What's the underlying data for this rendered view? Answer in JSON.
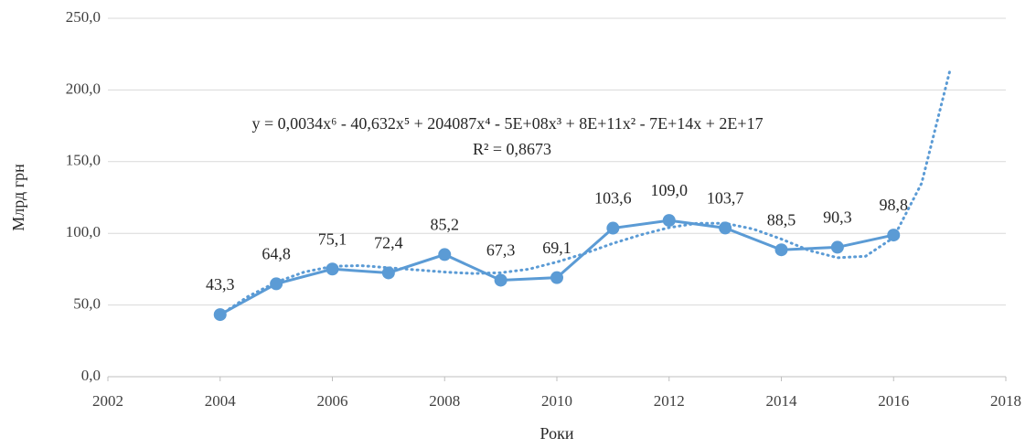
{
  "chart_data": {
    "type": "line",
    "x_label": "Роки",
    "y_label": "Млрд грн",
    "x": [
      2004,
      2005,
      2006,
      2007,
      2008,
      2009,
      2010,
      2011,
      2012,
      2013,
      2014,
      2015,
      2016
    ],
    "series": [
      {
        "color": "#5b9bd5",
        "values": [
          43.3,
          64.8,
          75.1,
          72.4,
          85.2,
          67.3,
          69.1,
          103.6,
          109.0,
          103.7,
          88.5,
          90.3,
          98.8
        ],
        "value_labels": [
          "43,3",
          "64,8",
          "75,1",
          "72,4",
          "85,2",
          "67,3",
          "69,1",
          "103,6",
          "109,0",
          "103,7",
          "88,5",
          "90,3",
          "98,8"
        ]
      }
    ],
    "trendline": {
      "equation": "y = 0,0034x⁶ - 40,632x⁵ + 204087x⁴ - 5E+08x³ + 8E+11x² - 7E+14x + 2E+17",
      "r_squared": "R² = 0,8673",
      "color": "#5b9bd5",
      "x": [
        2004,
        2004.5,
        2005,
        2005.5,
        2006,
        2006.5,
        2007,
        2007.5,
        2008,
        2008.5,
        2009,
        2009.5,
        2010,
        2010.5,
        2011,
        2011.5,
        2012,
        2012.5,
        2013,
        2013.5,
        2014,
        2014.5,
        2015,
        2015.5,
        2016,
        2016.5,
        2017
      ],
      "values": [
        43,
        56,
        66,
        73,
        77,
        77.5,
        76,
        74.5,
        73,
        72,
        72.5,
        75,
        80,
        86,
        93,
        99,
        104,
        107,
        107,
        103,
        96,
        88,
        83,
        84,
        97,
        135,
        213
      ]
    },
    "xlim": [
      2002,
      2018
    ],
    "xticks": [
      2002,
      2004,
      2006,
      2008,
      2010,
      2012,
      2014,
      2016,
      2018
    ],
    "ylim": [
      0,
      250
    ],
    "yticks": [
      {
        "value": 0,
        "label": "0,0"
      },
      {
        "value": 50,
        "label": "50,0"
      },
      {
        "value": 100,
        "label": "100,0"
      },
      {
        "value": 150,
        "label": "150,0"
      },
      {
        "value": 200,
        "label": "200,0"
      },
      {
        "value": 250,
        "label": "250,0"
      }
    ],
    "grid": true
  }
}
